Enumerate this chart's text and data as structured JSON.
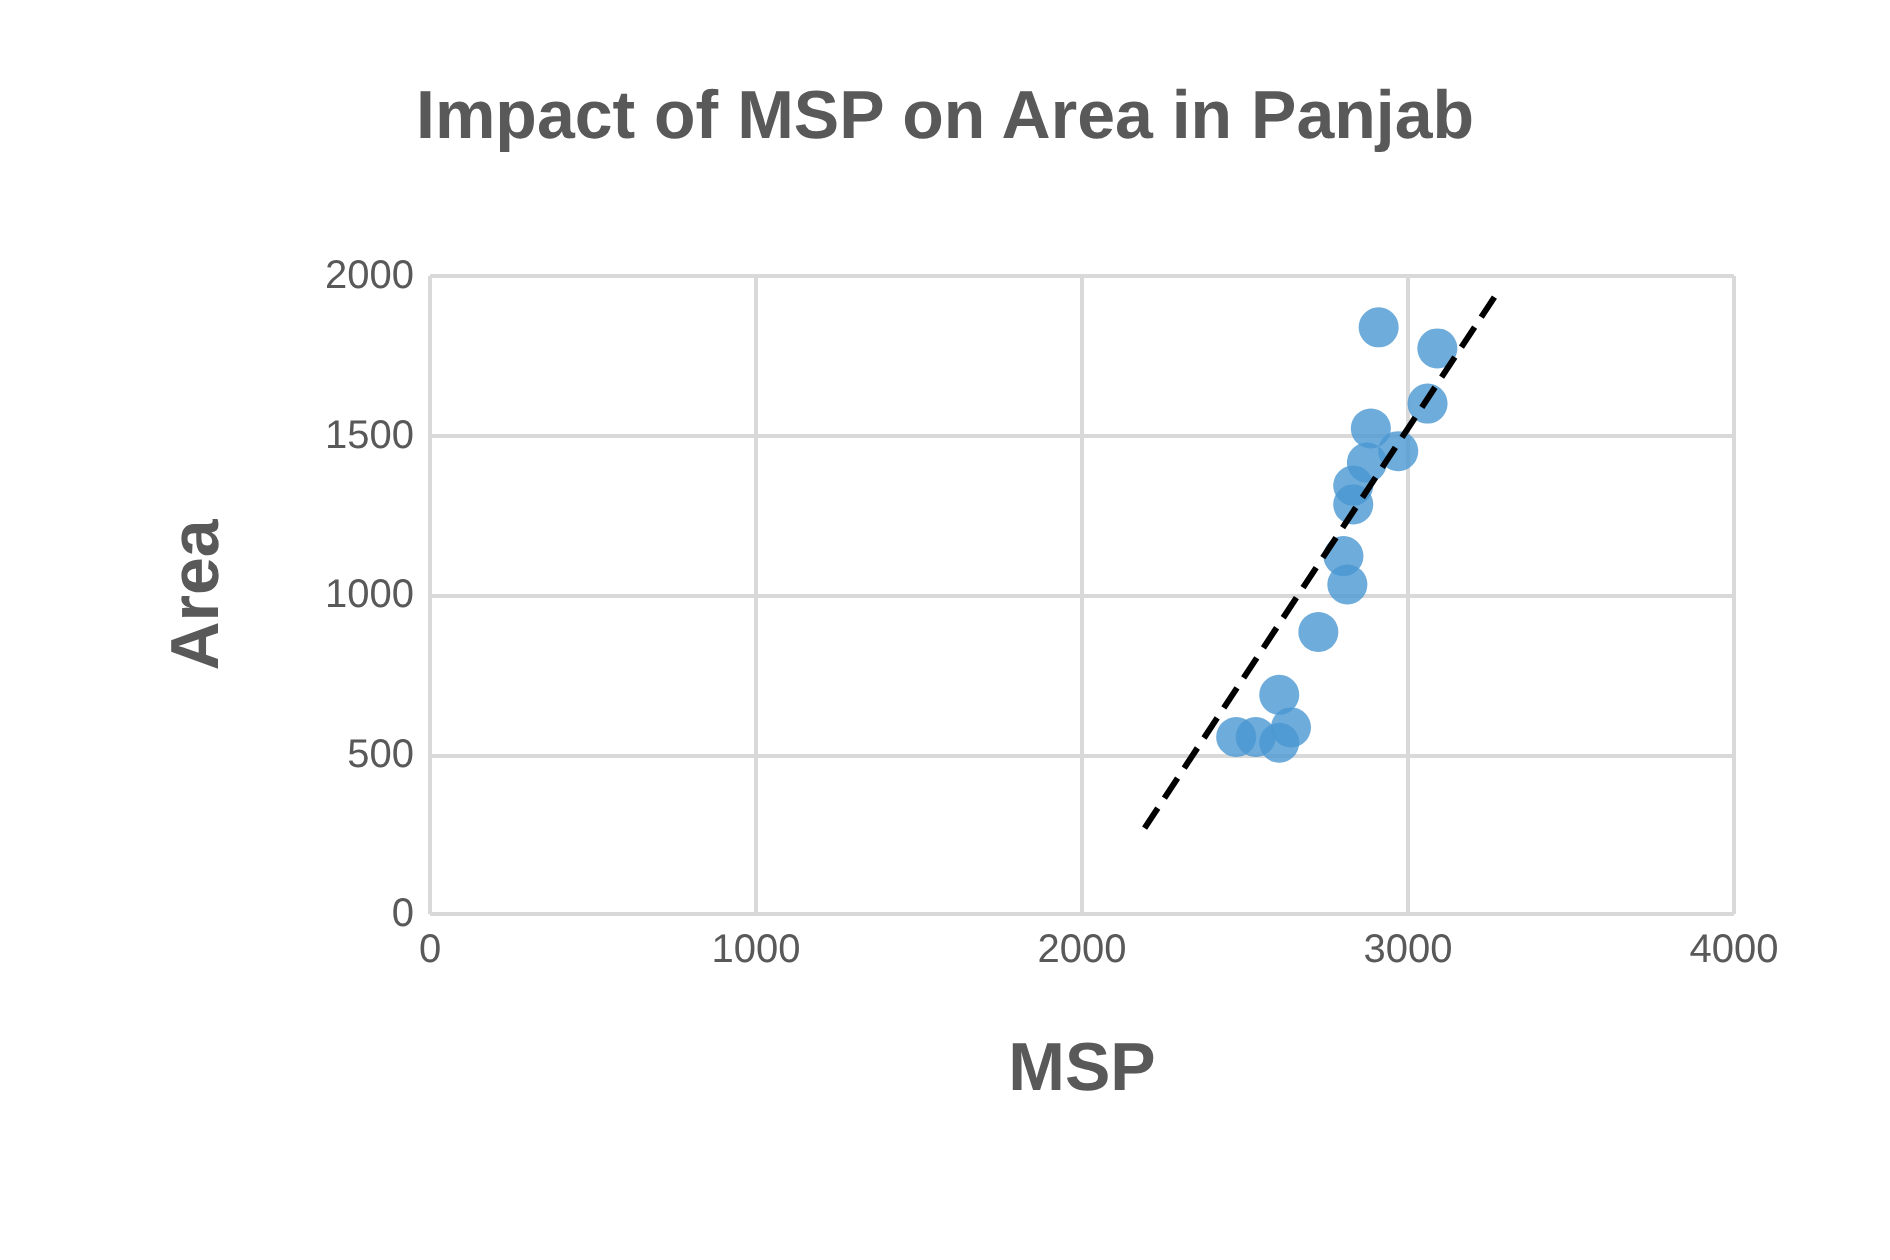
{
  "chart_data": {
    "type": "scatter",
    "title": "Impact of MSP on Area in Panjab",
    "xlabel": "MSP",
    "ylabel": "Area",
    "x": [
      2910,
      3090,
      3060,
      2886,
      2970,
      2874,
      2832,
      2832,
      2802,
      2814,
      2725,
      2605,
      2641,
      2605,
      2473,
      2533
    ],
    "series": [
      {
        "color": "#4a97d2",
        "values": [
          1839,
          1773,
          1600,
          1522,
          1451,
          1415,
          1343,
          1284,
          1122,
          1033,
          884,
          687,
          585,
          537,
          555,
          555
        ]
      },
      {
        "type": "line",
        "color": "#000000",
        "line_style": "dashed",
        "marker": "none",
        "x": [
          2192,
          3269
        ],
        "values": [
          269,
          1940
        ]
      }
    ],
    "xlim": [
      0,
      4000
    ],
    "xticks": [
      0,
      1000,
      2000,
      3000,
      4000
    ],
    "ylim": [
      0,
      2000
    ],
    "yticks": [
      0,
      500,
      1000,
      1500,
      2000
    ],
    "grid": true,
    "marker": "circle"
  }
}
